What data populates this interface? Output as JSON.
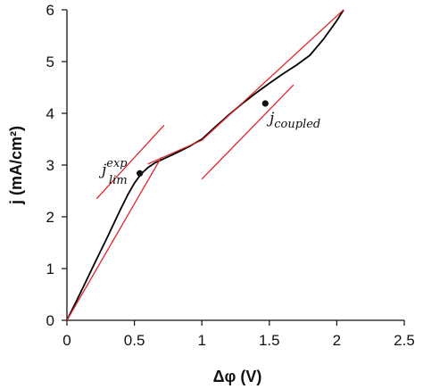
{
  "chart_data": {
    "type": "line",
    "title": "",
    "xlabel": "Δφ (V)",
    "ylabel": "j (mA/cm²)",
    "xlim": [
      0,
      2.5
    ],
    "ylim": [
      0,
      6
    ],
    "xticks": [
      0,
      0.5,
      1,
      1.5,
      2,
      2.5
    ],
    "xtick_labels": [
      "0",
      "0.5",
      "1",
      "1.5",
      "2",
      "2.5"
    ],
    "yticks": [
      0,
      1,
      2,
      3,
      4,
      5,
      6
    ],
    "ytick_labels": [
      "0",
      "1",
      "2",
      "3",
      "4",
      "5",
      "6"
    ],
    "grid": false,
    "legend": "none",
    "series": [
      {
        "color": "#000000",
        "style": "solid",
        "points": [
          [
            0,
            0
          ],
          [
            0.1,
            0.53
          ],
          [
            0.2,
            1.07
          ],
          [
            0.3,
            1.61
          ],
          [
            0.4,
            2.16
          ],
          [
            0.45,
            2.42
          ],
          [
            0.5,
            2.65
          ],
          [
            0.55,
            2.83
          ],
          [
            0.6,
            2.95
          ],
          [
            0.65,
            3.04
          ],
          [
            0.7,
            3.1
          ],
          [
            0.8,
            3.22
          ],
          [
            0.9,
            3.35
          ],
          [
            1.0,
            3.5
          ],
          [
            1.1,
            3.74
          ],
          [
            1.2,
            3.97
          ],
          [
            1.3,
            4.19
          ],
          [
            1.4,
            4.39
          ],
          [
            1.5,
            4.58
          ],
          [
            1.6,
            4.76
          ],
          [
            1.7,
            4.93
          ],
          [
            1.8,
            5.12
          ],
          [
            1.9,
            5.43
          ],
          [
            2.0,
            5.79
          ],
          [
            2.05,
            6.0
          ]
        ]
      }
    ],
    "tangent_lines": [
      {
        "color": "#e0252a",
        "points": [
          [
            0,
            0
          ],
          [
            0.7,
            3.15
          ]
        ]
      },
      {
        "color": "#e0252a",
        "points": [
          [
            0.22,
            2.35
          ],
          [
            0.72,
            3.77
          ]
        ]
      },
      {
        "color": "#e0252a",
        "points": [
          [
            0.6,
            3.02
          ],
          [
            1.0,
            3.48
          ],
          [
            2.05,
            6.0
          ]
        ]
      },
      {
        "color": "#e0252a",
        "points": [
          [
            1.0,
            2.73
          ],
          [
            1.68,
            4.55
          ]
        ]
      }
    ],
    "marked_points": [
      {
        "x": 0.54,
        "y": 2.84,
        "color": "#111111"
      },
      {
        "x": 1.47,
        "y": 4.19,
        "color": "#111111"
      }
    ],
    "annotations": [
      {
        "text": "j",
        "sub": "lim",
        "sup": "exp"
      },
      {
        "text": "j",
        "sub": "coupled"
      }
    ]
  }
}
